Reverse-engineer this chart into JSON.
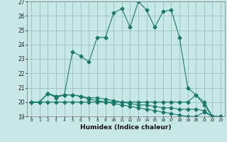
{
  "xlabel": "Humidex (Indice chaleur)",
  "x_values": [
    0,
    1,
    2,
    3,
    4,
    5,
    6,
    7,
    8,
    9,
    10,
    11,
    12,
    13,
    14,
    15,
    16,
    17,
    18,
    19,
    20,
    21,
    22,
    23
  ],
  "line1": [
    20.0,
    20.0,
    20.6,
    20.3,
    20.5,
    23.5,
    23.2,
    22.8,
    24.5,
    24.5,
    26.2,
    26.5,
    25.2,
    27.0,
    26.4,
    25.2,
    26.3,
    26.4,
    24.5,
    21.0,
    20.5,
    19.8,
    19.0,
    19.0
  ],
  "line2": [
    20.0,
    20.0,
    20.6,
    20.4,
    20.5,
    20.5,
    20.4,
    20.3,
    20.3,
    20.2,
    20.1,
    20.0,
    19.9,
    19.8,
    19.8,
    19.7,
    19.6,
    19.6,
    19.5,
    19.5,
    19.5,
    19.4,
    19.0,
    19.0
  ],
  "line3": [
    20.0,
    20.0,
    20.6,
    20.4,
    20.5,
    20.5,
    20.4,
    20.2,
    20.1,
    20.0,
    19.9,
    19.8,
    19.7,
    19.6,
    19.5,
    19.4,
    19.3,
    19.2,
    19.1,
    19.0,
    19.0,
    19.3,
    19.0,
    19.0
  ],
  "line4": [
    20.0,
    20.0,
    20.0,
    20.0,
    20.0,
    20.0,
    20.0,
    20.0,
    20.0,
    20.0,
    20.0,
    20.0,
    20.0,
    20.0,
    20.0,
    20.0,
    20.0,
    20.0,
    20.0,
    20.0,
    20.5,
    20.0,
    19.0,
    19.0
  ],
  "line_color": "#1a7a6a",
  "bg_color": "#c8e8e8",
  "grid_color": "#9bbfbf",
  "ylim": [
    19,
    27
  ],
  "yticks": [
    19,
    20,
    21,
    22,
    23,
    24,
    25,
    26,
    27
  ],
  "xlim": [
    -0.5,
    23.5
  ]
}
